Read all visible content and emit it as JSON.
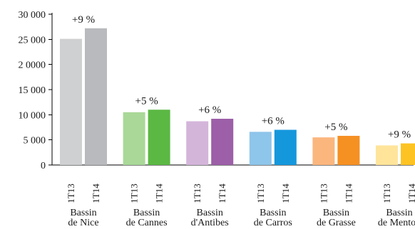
{
  "chart_data": {
    "type": "bar",
    "categories": [
      {
        "line1": "Bassin",
        "line2": "de Nice"
      },
      {
        "line1": "Bassin",
        "line2": "de Cannes"
      },
      {
        "line1": "Bassin",
        "line2": "d'Antibes"
      },
      {
        "line1": "Bassin",
        "line2": "de Carros"
      },
      {
        "line1": "Bassin",
        "line2": "de Grasse"
      },
      {
        "line1": "Bassin",
        "line2": "de Menton"
      }
    ],
    "periods": [
      "1T13",
      "1T14"
    ],
    "series": [
      {
        "name": "1T13",
        "values": [
          25100,
          10500,
          8700,
          6600,
          5500,
          3900
        ]
      },
      {
        "name": "1T14",
        "values": [
          27200,
          11000,
          9200,
          7000,
          5800,
          4300
        ]
      }
    ],
    "annotations": [
      "+9 %",
      "+5 %",
      "+6 %",
      "+6 %",
      "+5 %",
      "+9 %"
    ],
    "colors": [
      [
        "#cfd0d2",
        "#b8babd"
      ],
      [
        "#a9d898",
        "#5bb843"
      ],
      [
        "#d4b5da",
        "#9c5fa8"
      ],
      [
        "#8ec5ea",
        "#1597dc"
      ],
      [
        "#fbb67e",
        "#f59023"
      ],
      [
        "#ffe49a",
        "#fcc322"
      ]
    ],
    "yticks": [
      0,
      5000,
      10000,
      15000,
      20000,
      25000,
      30000
    ],
    "ytick_labels": [
      "0",
      "5 000",
      "10 000",
      "15 000",
      "2 0000",
      "25 000",
      "30 000"
    ],
    "ylim": [
      0,
      30000
    ],
    "title": "",
    "xlabel": "",
    "ylabel": "",
    "grid": false,
    "legend": "none"
  }
}
